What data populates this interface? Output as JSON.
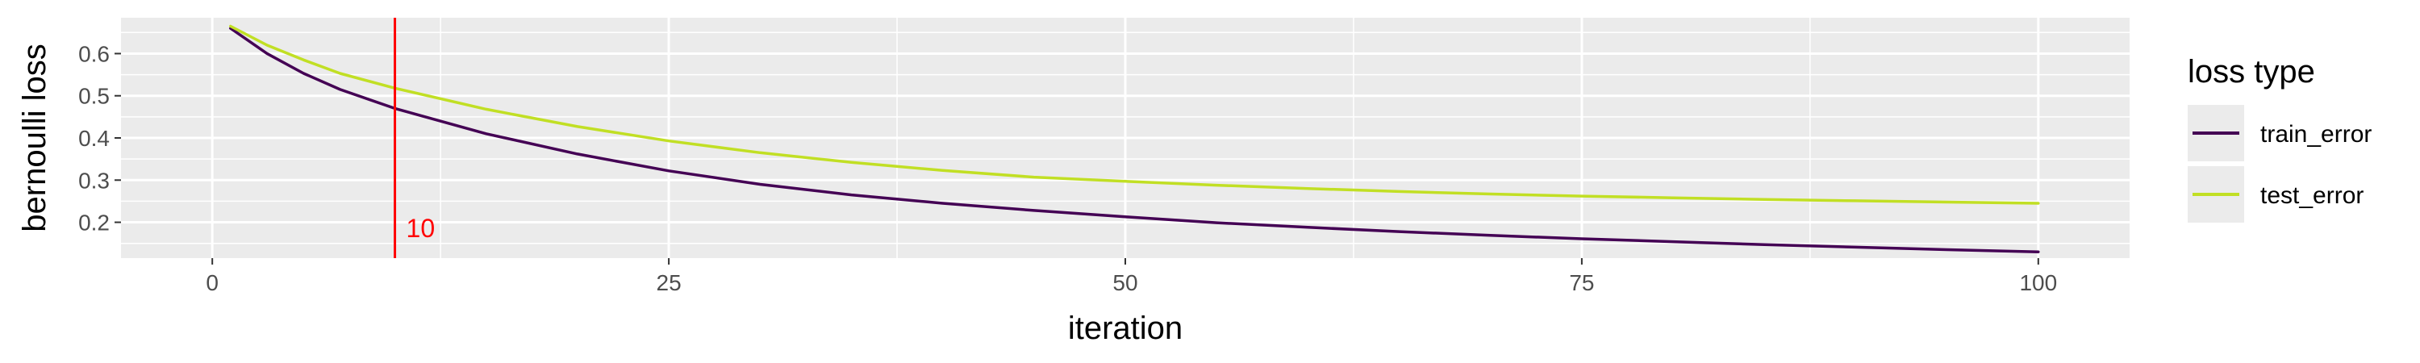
{
  "chart_data": {
    "type": "line",
    "xlabel": "iteration",
    "ylabel": "bernoulli loss",
    "xlim": [
      -5,
      105
    ],
    "ylim": [
      0.115,
      0.685
    ],
    "x_ticks": [
      0,
      25,
      50,
      75,
      100
    ],
    "x_tick_labels": [
      "0",
      "25",
      "50",
      "75",
      "100"
    ],
    "y_ticks": [
      0.2,
      0.3,
      0.4,
      0.5,
      0.6
    ],
    "y_tick_labels": [
      "0.2",
      "0.3",
      "0.4",
      "0.5",
      "0.6"
    ],
    "grid": true,
    "legend": {
      "title": "loss type",
      "position": "right",
      "entries": [
        "train_error",
        "test_error"
      ]
    },
    "series": [
      {
        "name": "train_error",
        "color": "#440154",
        "x": [
          1,
          3,
          5,
          7,
          10,
          15,
          20,
          25,
          30,
          35,
          40,
          45,
          50,
          55,
          60,
          65,
          70,
          75,
          80,
          85,
          90,
          95,
          100
        ],
        "values": [
          0.66,
          0.6,
          0.553,
          0.515,
          0.47,
          0.41,
          0.362,
          0.322,
          0.29,
          0.265,
          0.245,
          0.228,
          0.213,
          0.199,
          0.188,
          0.178,
          0.169,
          0.161,
          0.154,
          0.147,
          0.141,
          0.135,
          0.13
        ]
      },
      {
        "name": "test_error",
        "color": "#c1df24",
        "x": [
          1,
          3,
          5,
          7,
          10,
          15,
          20,
          25,
          30,
          35,
          40,
          45,
          50,
          55,
          60,
          65,
          70,
          75,
          80,
          85,
          90,
          95,
          100
        ],
        "values": [
          0.665,
          0.62,
          0.585,
          0.553,
          0.518,
          0.468,
          0.427,
          0.393,
          0.365,
          0.342,
          0.323,
          0.307,
          0.297,
          0.288,
          0.28,
          0.273,
          0.267,
          0.262,
          0.258,
          0.254,
          0.251,
          0.248,
          0.245
        ]
      }
    ],
    "vline": {
      "x": 10,
      "label": "10",
      "color": "#ff0000"
    }
  }
}
